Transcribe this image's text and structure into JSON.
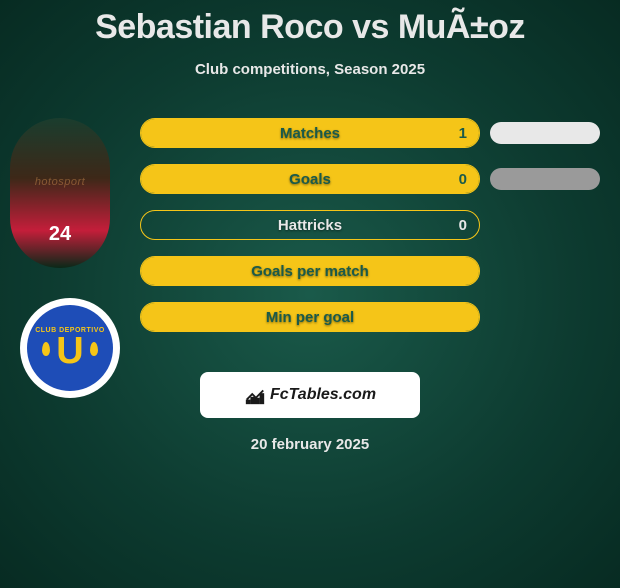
{
  "header": {
    "title": "Sebastian Roco vs MuÃ±oz",
    "subtitle": "Club competitions, Season 2025"
  },
  "player": {
    "jersey_number": "24",
    "photo_watermark": "hotosport"
  },
  "club": {
    "badge_top_text": "CLUB DEPORTIVO",
    "badge_letter": "U"
  },
  "stats": [
    {
      "label": "Matches",
      "value": "1",
      "fill_pct": 100,
      "label_color": "#1a5a4a",
      "value_color": "#1a5a4a"
    },
    {
      "label": "Goals",
      "value": "0",
      "fill_pct": 100,
      "label_color": "#1a5a4a",
      "value_color": "#1a5a4a"
    },
    {
      "label": "Hattricks",
      "value": "0",
      "fill_pct": 0,
      "label_color": "#e8e8e8",
      "value_color": "#e8e8e8"
    },
    {
      "label": "Goals per match",
      "value": "",
      "fill_pct": 100,
      "label_color": "#1a5a4a",
      "value_color": "#1a5a4a"
    },
    {
      "label": "Min per goal",
      "value": "",
      "fill_pct": 100,
      "label_color": "#1a5a4a",
      "value_color": "#1a5a4a"
    }
  ],
  "opponent_pills": [
    {
      "color": "#e8e8e8"
    },
    {
      "color": "#9a9a9a"
    }
  ],
  "colors": {
    "accent": "#f5c518",
    "bg_center": "#1a5a4a",
    "bg_edge": "#072b22",
    "text": "#e8e8e8"
  },
  "footer": {
    "brand": "FcTables.com",
    "date": "20 february 2025"
  }
}
